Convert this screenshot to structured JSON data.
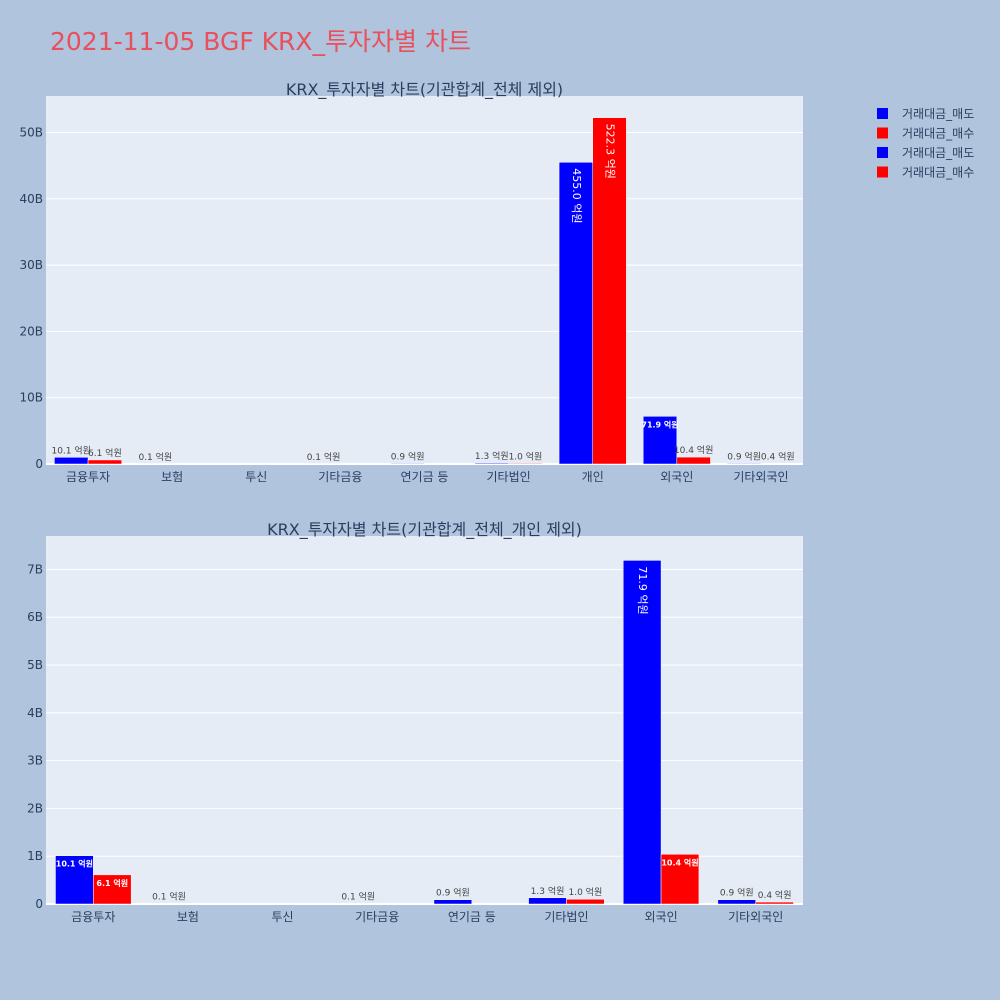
{
  "title": "2021-11-05 BGF KRX_투자자별 차트",
  "colors": {
    "sell": "#0000ff",
    "buy": "#ff0000",
    "plot_bg": "#e5ecf6",
    "page_bg": "#b0c4de"
  },
  "legend": [
    "거래대금_매도",
    "거래대금_매수",
    "거래대금_매도",
    "거래대금_매수"
  ],
  "chart_data": [
    {
      "type": "bar",
      "title": "KRX_투자자별 차트(기관합계_전체 제외)",
      "categories": [
        "금융투자",
        "보험",
        "투신",
        "기타금융",
        "연기금 등",
        "기타법인",
        "개인",
        "외국인",
        "기타외국인"
      ],
      "series": [
        {
          "name": "거래대금_매도",
          "values": [
            1010000000,
            10000000,
            0,
            10000000,
            90000000,
            130000000,
            45500000000,
            7190000000,
            90000000
          ],
          "labels": [
            "10.1 억원",
            "0.1 억원",
            "",
            "0.1 억원",
            "0.9 억원",
            "1.3 억원",
            "455.0 억원",
            "71.9 억원",
            "0.9 억원"
          ]
        },
        {
          "name": "거래대금_매수",
          "values": [
            610000000,
            0,
            0,
            0,
            0,
            100000000,
            52230000000,
            1040000000,
            40000000
          ],
          "labels": [
            "6.1 억원",
            "",
            "",
            "",
            "",
            "1.0 억원",
            "522.3 억원",
            "10.4 억원",
            "0.4 억원"
          ]
        }
      ],
      "yticks": [
        "0",
        "10B",
        "20B",
        "30B",
        "40B",
        "50B"
      ],
      "ylim": [
        0,
        55500000000
      ]
    },
    {
      "type": "bar",
      "title": "KRX_투자자별 차트(기관합계_전체_개인 제외)",
      "categories": [
        "금융투자",
        "보험",
        "투신",
        "기타금융",
        "연기금 등",
        "기타법인",
        "외국인",
        "기타외국인"
      ],
      "series": [
        {
          "name": "거래대금_매도",
          "values": [
            1010000000,
            10000000,
            0,
            10000000,
            90000000,
            130000000,
            7190000000,
            90000000
          ],
          "labels": [
            "10.1 억원",
            "0.1 억원",
            "",
            "0.1 억원",
            "0.9 억원",
            "1.3 억원",
            "71.9 억원",
            "0.9 억원"
          ]
        },
        {
          "name": "거래대금_매수",
          "values": [
            610000000,
            0,
            0,
            0,
            0,
            100000000,
            1040000000,
            40000000
          ],
          "labels": [
            "6.1 억원",
            "",
            "",
            "",
            "",
            "1.0 억원",
            "10.4 억원",
            "0.4 억원"
          ]
        }
      ],
      "yticks": [
        "0",
        "1B",
        "2B",
        "3B",
        "4B",
        "5B",
        "6B",
        "7B"
      ],
      "ylim": [
        0,
        7700000000
      ]
    }
  ]
}
